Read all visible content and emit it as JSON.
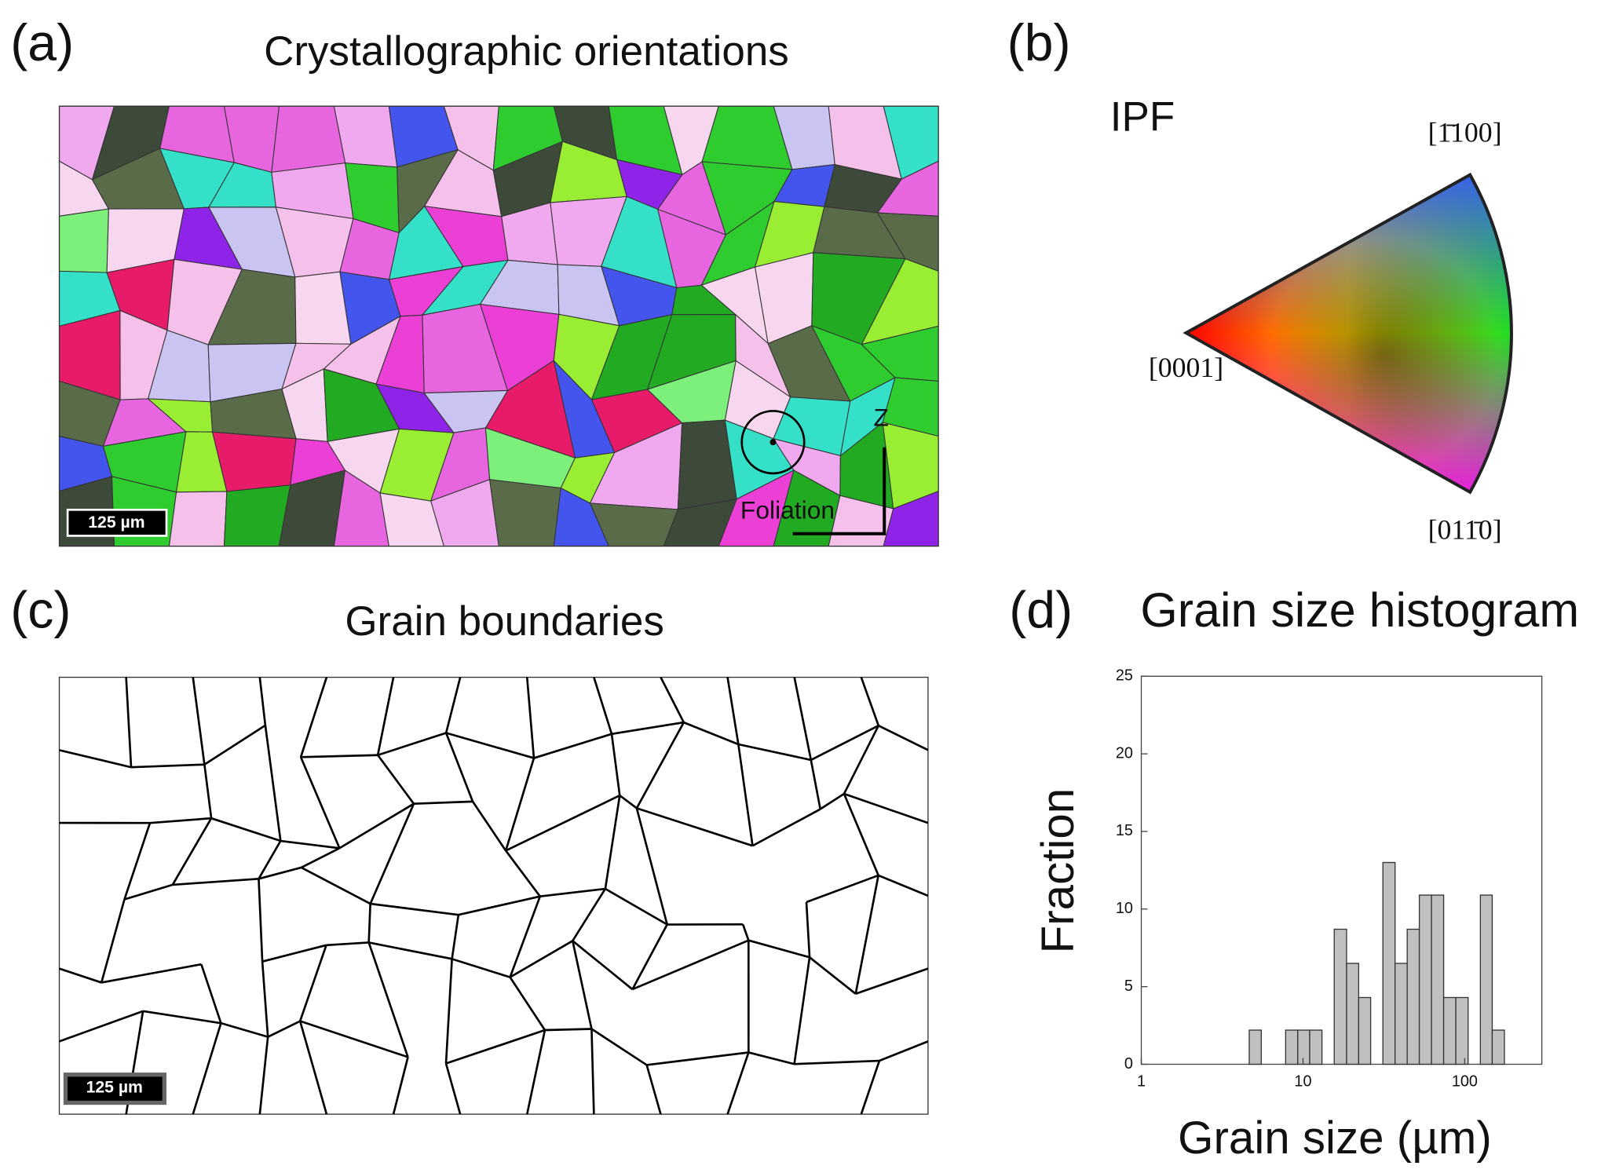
{
  "figure": {
    "panel_a": {
      "label": "(a)",
      "title": "Crystallographic orientations",
      "scale_bar": "125 µm",
      "foliation": "Foliation",
      "axis_z": "Z"
    },
    "panel_b": {
      "label": "(b)",
      "title": "IPF",
      "pole_top": "[1̄100]",
      "pole_left": "[0001]",
      "pole_bottom": "[011̄0]"
    },
    "panel_c": {
      "label": "(c)",
      "title": "Grain boundaries",
      "scale_bar": "125 µm"
    },
    "panel_d": {
      "label": "(d)"
    }
  },
  "chart_data": {
    "type": "histogram",
    "title": "Grain size histogram",
    "x_label": "Grain size (µm)",
    "y_label": "Fraction",
    "bins": [
      4.65,
      5.52,
      6.57,
      7.81,
      9.28,
      11.0,
      13.1,
      15.6,
      18.6,
      22.1,
      26.2,
      31.2,
      37.1,
      44.1,
      52.4,
      62.3,
      74.1,
      88.1,
      105,
      125,
      148,
      176
    ],
    "values": [
      2.2,
      0,
      0,
      2.2,
      2.2,
      2.2,
      0,
      8.7,
      6.5,
      4.3,
      0,
      13,
      6.5,
      8.7,
      10.9,
      10.9,
      4.3,
      4.3,
      0,
      10.9,
      2.2
    ],
    "color": "#c0c0c0",
    "log_x": true,
    "xlim": [
      1,
      300
    ],
    "xticks": [
      1,
      10,
      100
    ],
    "ylim": [
      0,
      25
    ],
    "yticks": [
      0,
      5,
      10,
      15,
      20,
      25
    ]
  }
}
